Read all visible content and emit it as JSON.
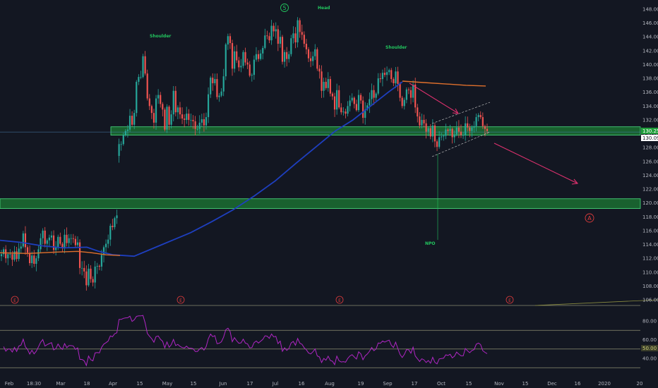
{
  "chart_data": {
    "type": "candlestick",
    "colors": {
      "background": "#131722",
      "up": "#26a69a",
      "down": "#ef5350",
      "ma_long": "#1e3fbf",
      "ma_short": "#e0702c",
      "rsi": "#b026c4",
      "zone": "#1f9e3a",
      "zone_border": "#4ade80",
      "annotation": "#22c55e",
      "arrow": "#e0316f",
      "wave": "#e03c3c",
      "grid": "#8a8c70"
    },
    "x_ticks": [
      "Feb",
      "18:30",
      "Mar",
      "18",
      "Apr",
      "15",
      "May",
      "15",
      "Jun",
      "17",
      "Jul",
      "16",
      "Aug",
      "19",
      "Sep",
      "17",
      "Oct",
      "15",
      "Nov",
      "15",
      "Dec",
      "16",
      "2020",
      "20"
    ],
    "y_ticks": [
      "148.00",
      "146.00",
      "144.00",
      "142.00",
      "140.00",
      "138.00",
      "136.00",
      "134.00",
      "132.00",
      "130.00",
      "128.00",
      "126.00",
      "124.00",
      "122.00",
      "120.00",
      "118.00",
      "116.00",
      "114.00",
      "112.00",
      "110.00",
      "108.00",
      "106.00"
    ],
    "y_range": [
      104.9,
      149.6
    ],
    "rsi_ticks": [
      "80.00",
      "60.00",
      "40.00"
    ],
    "rsi_levels": [
      70,
      50,
      30
    ],
    "rsi_range": [
      24,
      89
    ],
    "price_labels": [
      "130.25",
      "130.09"
    ],
    "rsi_value_label": "50.00",
    "support_zones": [
      {
        "from": 130.0,
        "to": 130.8
      },
      {
        "from": 119.4,
        "to": 120.4
      }
    ],
    "horizontal_line": 130.25,
    "annotations": [
      "Shoulder",
      "Head",
      "Shoulder",
      "NPO"
    ],
    "wave_labels": [
      "5",
      "A"
    ],
    "event_markers": [
      "E",
      "E",
      "E",
      "E"
    ],
    "ohlc_closes": [
      112.6,
      113.3,
      112.0,
      112.6,
      112.6,
      111.8,
      113.0,
      111.9,
      113.4,
      113.7,
      115.6,
      113.6,
      112.8,
      111.3,
      112.4,
      111.2,
      112.0,
      113.3,
      114.9,
      116.0,
      114.1,
      114.6,
      115.0,
      115.3,
      113.2,
      113.6,
      115.1,
      114.1,
      113.5,
      115.4,
      114.2,
      114.9,
      114.9,
      114.8,
      113.9,
      114.3,
      110.6,
      110.6,
      110.1,
      108.1,
      110.5,
      109.0,
      108.5,
      110.8,
      110.9,
      110.8,
      112.5,
      113.6,
      114.1,
      114.7,
      116.7,
      116.5,
      117.8,
      118.2,
      128.5,
      128.5,
      129.8,
      130.4,
      130.6,
      132.6,
      131.3,
      133.0,
      137.5,
      138.2,
      138.2,
      141.2,
      138.7,
      135.1,
      134.0,
      133.0,
      131.6,
      135.1,
      135.6,
      134.3,
      133.5,
      130.6,
      133.9,
      131.3,
      132.8,
      136.2,
      133.1,
      133.8,
      132.8,
      132.2,
      132.0,
      132.9,
      132.0,
      132.0,
      131.8,
      130.7,
      130.7,
      131.6,
      132.1,
      131.2,
      132.4,
      135.7,
      138.1,
      137.3,
      137.9,
      135.3,
      135.5,
      136.1,
      138.3,
      142.9,
      144.1,
      143.1,
      139.4,
      141.9,
      140.6,
      139.6,
      139.8,
      141.8,
      140.3,
      140.0,
      138.4,
      138.5,
      140.7,
      141.5,
      140.8,
      141.6,
      142.4,
      144.2,
      144.1,
      143.5,
      145.6,
      144.8,
      145.1,
      143.0,
      144.0,
      140.4,
      141.8,
      140.8,
      141.5,
      143.8,
      144.5,
      143.2,
      146.4,
      144.7,
      144.3,
      143.0,
      142.2,
      140.9,
      140.5,
      141.2,
      142.2,
      139.4,
      139.0,
      136.2,
      137.5,
      136.6,
      137.9,
      135.8,
      135.4,
      133.5,
      136.3,
      133.8,
      133.1,
      133.2,
      132.9,
      134.0,
      134.8,
      135.2,
      134.3,
      133.4,
      135.6,
      134.8,
      132.3,
      133.5,
      134.1,
      135.0,
      136.3,
      135.2,
      135.8,
      138.0,
      137.9,
      138.8,
      138.5,
      138.9,
      139.2,
      137.9,
      137.3,
      139.0,
      137.2,
      135.2,
      134.0,
      134.9,
      136.4,
      136.3,
      135.2,
      137.1,
      133.8,
      132.5,
      131.2,
      132.0,
      131.5,
      130.3,
      130.8,
      129.6,
      131.2,
      128.9,
      128.1,
      129.5,
      129.6,
      129.7,
      130.6,
      130.4,
      130.7,
      129.5,
      129.9,
      130.9,
      130.3,
      129.8,
      129.8,
      131.5,
      130.9,
      130.4,
      130.9,
      131.1,
      132.4,
      132.7,
      132.4,
      131.1,
      130.7,
      130.4
    ]
  }
}
